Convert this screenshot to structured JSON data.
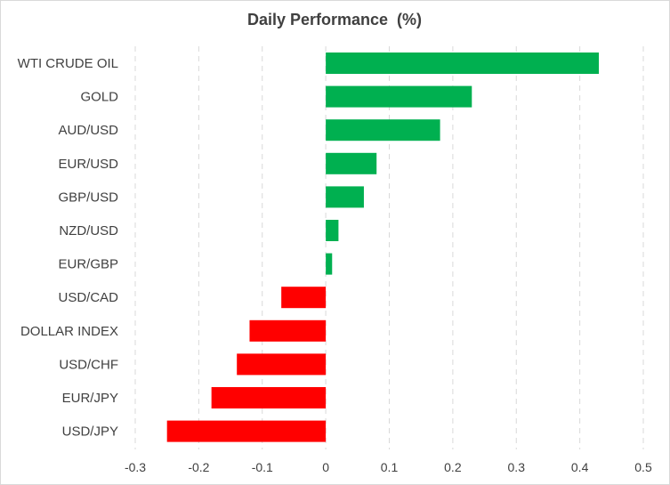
{
  "chart_data": {
    "type": "bar",
    "orientation": "horizontal",
    "title": "Daily Performance  (%)",
    "categories": [
      "WTI CRUDE OIL",
      "GOLD",
      "AUD/USD",
      "EUR/USD",
      "GBP/USD",
      "NZD/USD",
      "EUR/GBP",
      "USD/CAD",
      "DOLLAR INDEX",
      "USD/CHF",
      "EUR/JPY",
      "USD/JPY"
    ],
    "values": [
      0.43,
      0.23,
      0.18,
      0.08,
      0.06,
      0.02,
      0.01,
      -0.07,
      -0.12,
      -0.14,
      -0.18,
      -0.25
    ],
    "xlim": [
      -0.3,
      0.5
    ],
    "xticks": [
      "-0.3",
      "-0.2",
      "-0.1",
      "0",
      "0.1",
      "0.2",
      "0.3",
      "0.4",
      "0.5"
    ],
    "grid": true,
    "colors": {
      "positive": "#00b050",
      "negative": "#ff0000"
    }
  }
}
